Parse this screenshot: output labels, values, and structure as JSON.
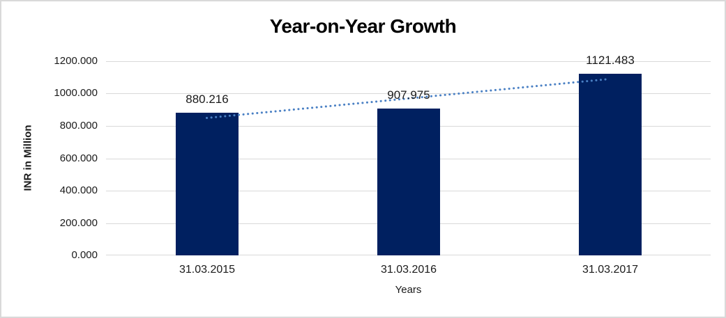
{
  "window": {
    "background_color": "#ffffff",
    "frame_border_color": "#d9d9d9"
  },
  "chart_data": {
    "type": "bar",
    "title": "Year-on-Year Growth",
    "xlabel": "Years",
    "ylabel": "INR in Million",
    "categories": [
      "31.03.2015",
      "31.03.2016",
      "31.03.2017"
    ],
    "values": [
      880.216,
      907.975,
      1121.483
    ],
    "value_labels": [
      "880.216",
      "907.975",
      "1121.483"
    ],
    "ylim": [
      0,
      1200
    ],
    "ytick_step": 200,
    "ytick_labels": [
      "0.000",
      "200.000",
      "400.000",
      "600.000",
      "800.000",
      "1000.000",
      "1200.000"
    ],
    "grid": true,
    "gridline_color": "#d9d9d9",
    "bar_color": "#002060",
    "legend": "none",
    "trendline": {
      "type": "linear",
      "style": "dotted",
      "color": "#4a80c4",
      "start_value": 849.3,
      "end_value": 1090.5
    }
  }
}
